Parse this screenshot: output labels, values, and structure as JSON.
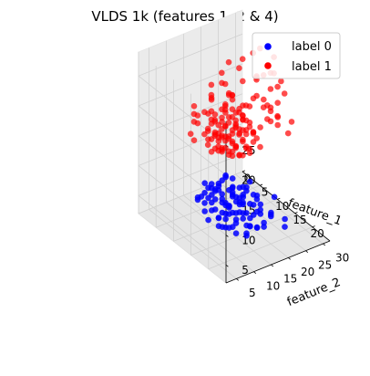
{
  "chart_data": {
    "type": "scatter",
    "projection": "3d",
    "title": "VLDS 1k (features 1, 2 & 4)",
    "xlabel": "feature_1",
    "ylabel": "feature_2",
    "zlabel": "",
    "xlim": [
      0,
      25
    ],
    "ylim": [
      2,
      32
    ],
    "zlim": [
      2,
      29
    ],
    "xticks": [
      0,
      5,
      10,
      15,
      20
    ],
    "yticks": [
      5,
      10,
      15,
      20,
      25,
      30
    ],
    "zticks": [
      5,
      10,
      15,
      20,
      25
    ],
    "grid": true,
    "legend_position": "top-right",
    "series": [
      {
        "name": "label 0",
        "color": "#0000ff",
        "points": [
          [
            15,
            12,
            8
          ],
          [
            16,
            13,
            7
          ],
          [
            14,
            10,
            9
          ],
          [
            17,
            15,
            6
          ],
          [
            13,
            11,
            10
          ],
          [
            15,
            14,
            9
          ],
          [
            18,
            12,
            7
          ],
          [
            12,
            9,
            11
          ],
          [
            16,
            16,
            8
          ],
          [
            19,
            14,
            6
          ],
          [
            14,
            13,
            12
          ],
          [
            15,
            10,
            5
          ],
          [
            17,
            11,
            9
          ],
          [
            13,
            14,
            7
          ],
          [
            16,
            12,
            11
          ],
          [
            18,
            16,
            5
          ],
          [
            20,
            15,
            8
          ],
          [
            12,
            12,
            9
          ],
          [
            15,
            16,
            10
          ],
          [
            14,
            8,
            6
          ],
          [
            17,
            13,
            4
          ],
          [
            16,
            9,
            7
          ],
          [
            19,
            12,
            10
          ],
          [
            13,
            10,
            8
          ],
          [
            15,
            12,
            13
          ],
          [
            21,
            17,
            6
          ],
          [
            11,
            10,
            7
          ],
          [
            18,
            18,
            9
          ],
          [
            16,
            14,
            5
          ],
          [
            14,
            12,
            8
          ],
          [
            17,
            16,
            11
          ],
          [
            15,
            11,
            7
          ],
          [
            19,
            16,
            9
          ],
          [
            12,
            11,
            6
          ],
          [
            16,
            10,
            10
          ],
          [
            20,
            13,
            5
          ],
          [
            14,
            15,
            9
          ],
          [
            18,
            14,
            12
          ],
          [
            13,
            12,
            5
          ],
          [
            17,
            10,
            8
          ],
          [
            22,
            14,
            7
          ],
          [
            15,
            15,
            6
          ],
          [
            16,
            13,
            10
          ],
          [
            14,
            11,
            11
          ],
          [
            18,
            11,
            6
          ],
          [
            12,
            13,
            10
          ],
          [
            19,
            18,
            7
          ],
          [
            17,
            14,
            9
          ],
          [
            15,
            13,
            4
          ],
          [
            13,
            9,
            9
          ],
          [
            21,
            16,
            10
          ],
          [
            16,
            17,
            6
          ],
          [
            14,
            14,
            7
          ],
          [
            18,
            13,
            8
          ],
          [
            10,
            11,
            8
          ],
          [
            20,
            18,
            6
          ],
          [
            15,
            9,
            8
          ],
          [
            17,
            12,
            12
          ],
          [
            13,
            13,
            11
          ],
          [
            19,
            15,
            7
          ],
          [
            16,
            11,
            5
          ],
          [
            12,
            10,
            10
          ],
          [
            18,
            17,
            10
          ],
          [
            14,
            16,
            8
          ],
          [
            22,
            18,
            8
          ],
          [
            15,
            14,
            12
          ],
          [
            11,
            12,
            9
          ],
          [
            17,
            15,
            10
          ],
          [
            20,
            12,
            9
          ],
          [
            13,
            15,
            6
          ],
          [
            16,
            15,
            9
          ],
          [
            19,
            13,
            11
          ],
          [
            14,
            9,
            10
          ],
          [
            18,
            15,
            4
          ],
          [
            12,
            14,
            8
          ],
          [
            21,
            15,
            9
          ],
          [
            15,
            17,
            7
          ],
          [
            17,
            17,
            8
          ],
          [
            13,
            8,
            7
          ],
          [
            23,
            17,
            9
          ],
          [
            16,
            12,
            7
          ],
          [
            14,
            13,
            5
          ],
          [
            18,
            12,
            10
          ],
          [
            15,
            10,
            11
          ],
          [
            20,
            16,
            11
          ],
          [
            12,
            8,
            9
          ],
          [
            17,
            9,
            6
          ],
          [
            19,
            17,
            5
          ],
          [
            13,
            16,
            9
          ],
          [
            16,
            18,
            11
          ],
          [
            24,
            20,
            8
          ],
          [
            23,
            21,
            6
          ],
          [
            22,
            19,
            11
          ],
          [
            11,
            8,
            8
          ],
          [
            10,
            13,
            9
          ],
          [
            9,
            10,
            7
          ],
          [
            21,
            13,
            7
          ],
          [
            24,
            16,
            10
          ],
          [
            15,
            18,
            9
          ],
          [
            18,
            19,
            7
          ]
        ]
      },
      {
        "name": "label 1",
        "color": "#ff0000",
        "points": [
          [
            8,
            18,
            15
          ],
          [
            9,
            20,
            14
          ],
          [
            7,
            16,
            17
          ],
          [
            10,
            19,
            13
          ],
          [
            8,
            22,
            16
          ],
          [
            6,
            18,
            14
          ],
          [
            9,
            17,
            18
          ],
          [
            11,
            21,
            15
          ],
          [
            7,
            20,
            19
          ],
          [
            10,
            17,
            16
          ],
          [
            8,
            15,
            13
          ],
          [
            9,
            23,
            17
          ],
          [
            6,
            21,
            15
          ],
          [
            12,
            19,
            17
          ],
          [
            7,
            18,
            12
          ],
          [
            10,
            22,
            14
          ],
          [
            8,
            19,
            20
          ],
          [
            11,
            18,
            13
          ],
          [
            5,
            19,
            16
          ],
          [
            9,
            16,
            15
          ],
          [
            7,
            22,
            18
          ],
          [
            12,
            21,
            14
          ],
          [
            8,
            17,
            17
          ],
          [
            10,
            20,
            18
          ],
          [
            6,
            16,
            13
          ],
          [
            9,
            24,
            15
          ],
          [
            11,
            16,
            16
          ],
          [
            7,
            19,
            14
          ],
          [
            8,
            21,
            13
          ],
          [
            10,
            18,
            19
          ],
          [
            5,
            17,
            15
          ],
          [
            12,
            23,
            16
          ],
          [
            9,
            19,
            12
          ],
          [
            6,
            20,
            18
          ],
          [
            11,
            20,
            17
          ],
          [
            8,
            16,
            19
          ],
          [
            10,
            21,
            12
          ],
          [
            7,
            17,
            15
          ],
          [
            9,
            22,
            19
          ],
          [
            13,
            20,
            15
          ],
          [
            6,
            23,
            16
          ],
          [
            8,
            20,
            14
          ],
          [
            10,
            16,
            14
          ],
          [
            7,
            21,
            16
          ],
          [
            11,
            22,
            18
          ],
          [
            9,
            18,
            17
          ],
          [
            5,
            21,
            14
          ],
          [
            12,
            18,
            15
          ],
          [
            8,
            24,
            17
          ],
          [
            10,
            19,
            16
          ],
          [
            6,
            17,
            17
          ],
          [
            9,
            21,
            13
          ],
          [
            11,
            17,
            14
          ],
          [
            7,
            23,
            15
          ],
          [
            8,
            18,
            18
          ],
          [
            13,
            22,
            17
          ],
          [
            10,
            23,
            15
          ],
          [
            6,
            19,
            12
          ],
          [
            9,
            17,
            13
          ],
          [
            12,
            20,
            19
          ],
          [
            4,
            19,
            17
          ],
          [
            8,
            22,
            12
          ],
          [
            11,
            19,
            20
          ],
          [
            7,
            15,
            16
          ],
          [
            10,
            24,
            16
          ],
          [
            5,
            22,
            17
          ],
          [
            9,
            20,
            21
          ],
          [
            13,
            18,
            14
          ],
          [
            6,
            22,
            13
          ],
          [
            8,
            16,
            16
          ],
          [
            12,
            22,
            13
          ],
          [
            7,
            20,
            12
          ],
          [
            11,
            21,
            19
          ],
          [
            9,
            15,
            14
          ],
          [
            10,
            17,
            20
          ],
          [
            5,
            18,
            13
          ],
          [
            8,
            23,
            14
          ],
          [
            14,
            21,
            16
          ],
          [
            6,
            15,
            15
          ],
          [
            9,
            19,
            22
          ],
          [
            12,
            17,
            18
          ],
          [
            7,
            24,
            17
          ],
          [
            10,
            22,
            20
          ],
          [
            4,
            20,
            15
          ],
          [
            8,
            21,
            21
          ],
          [
            11,
            23,
            13
          ],
          [
            13,
            19,
            18
          ],
          [
            6,
            24,
            14
          ],
          [
            9,
            23,
            11
          ],
          [
            7,
            16,
            21
          ],
          [
            10,
            15,
            17
          ],
          [
            5,
            16,
            18
          ],
          [
            12,
            24,
            15
          ],
          [
            8,
            15,
            22
          ],
          [
            11,
            15,
            15
          ],
          [
            14,
            23,
            18
          ],
          [
            9,
            25,
            16
          ],
          [
            6,
            21,
            22
          ],
          [
            13,
            24,
            14
          ],
          [
            10,
            18,
            23
          ],
          [
            8,
            26,
            18
          ],
          [
            5,
            24,
            19
          ],
          [
            7,
            25,
            22
          ],
          [
            4,
            22,
            21
          ],
          [
            9,
            27,
            20
          ],
          [
            12,
            26,
            21
          ],
          [
            6,
            27,
            17
          ],
          [
            11,
            27,
            19
          ],
          [
            3,
            20,
            19
          ],
          [
            10,
            26,
            24
          ],
          [
            6,
            26,
            25
          ],
          [
            8,
            28,
            22
          ],
          [
            13,
            27,
            23
          ],
          [
            5,
            26,
            23
          ],
          [
            12,
            28,
            25
          ],
          [
            9,
            29,
            23
          ],
          [
            7,
            28,
            26
          ],
          [
            14,
            26,
            20
          ],
          [
            15,
            25,
            19
          ],
          [
            4,
            24,
            24
          ],
          [
            16,
            24,
            22
          ],
          [
            11,
            30,
            24
          ],
          [
            3,
            23,
            22
          ],
          [
            13,
            29,
            18
          ],
          [
            6,
            30,
            21
          ],
          [
            10,
            31,
            26
          ],
          [
            8,
            29,
            27
          ],
          [
            15,
            28,
            25
          ],
          [
            2,
            21,
            20
          ],
          [
            14,
            30,
            22
          ],
          [
            7,
            12,
            18
          ],
          [
            9,
            13,
            16
          ],
          [
            5,
            13,
            14
          ],
          [
            11,
            14,
            17
          ],
          [
            8,
            11,
            20
          ],
          [
            3,
            15,
            17
          ],
          [
            6,
            11,
            16
          ],
          [
            4,
            14,
            19
          ],
          [
            10,
            12,
            21
          ],
          [
            2,
            16,
            15
          ],
          [
            16,
            19,
            19
          ],
          [
            17,
            22,
            21
          ],
          [
            18,
            24,
            20
          ],
          [
            15,
            20,
            24
          ],
          [
            17,
            25,
            23
          ],
          [
            19,
            23,
            22
          ],
          [
            20,
            26,
            21
          ],
          [
            16,
            26,
            25
          ],
          [
            18,
            21,
            24
          ],
          [
            21,
            24,
            20
          ]
        ]
      }
    ]
  }
}
